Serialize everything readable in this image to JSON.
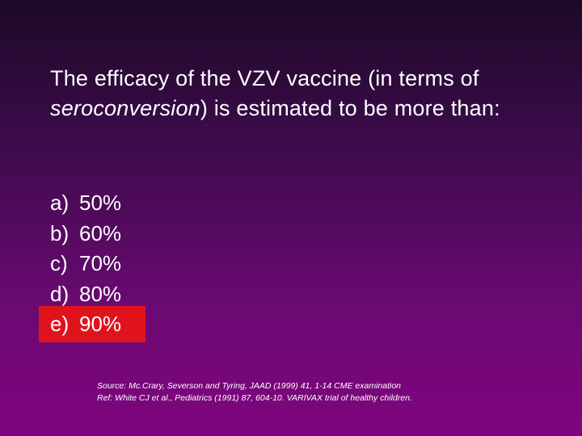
{
  "question": {
    "before": "The efficacy of the VZV vaccine (in terms of ",
    "emphasis": "seroconversion",
    "after": ") is estimated to be more than:"
  },
  "options": [
    {
      "letter": "a)",
      "text": "50%"
    },
    {
      "letter": "b)",
      "text": "60%"
    },
    {
      "letter": "c)",
      "text": "70%"
    },
    {
      "letter": "d)",
      "text": "80%"
    },
    {
      "letter": "e)",
      "text": "90%"
    }
  ],
  "highlighted_option": 4,
  "sources": [
    "Source:  Mc.Crary, Severson and Tyring, JAAD (1999) 41, 1-14 CME examination",
    "Ref: White CJ et al., Pediatrics (1991) 87, 604-10.  VARIVAX trial of healthy children."
  ]
}
